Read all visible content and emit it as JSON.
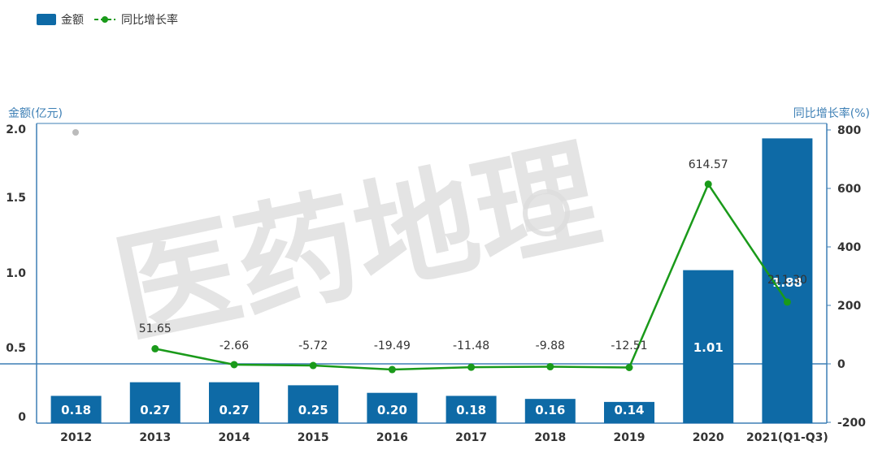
{
  "colors": {
    "bar": "#0e6aa6",
    "line": "#1a9a1a",
    "axis": "#3d7fb5",
    "label_text": "#333333",
    "bar_label_text": "#ffffff",
    "watermark": "#dcdcdc"
  },
  "legend": {
    "bar_label": "金额",
    "line_label": "同比增长率"
  },
  "watermark": {
    "text": "医药地理"
  },
  "chart_data": {
    "type": "bar",
    "categories": [
      "2012",
      "2013",
      "2014",
      "2015",
      "2016",
      "2017",
      "2018",
      "2019",
      "2020",
      "2021(Q1-Q3)"
    ],
    "series": [
      {
        "name": "金额",
        "type": "bar",
        "axis": "left",
        "values": [
          0.18,
          0.27,
          0.27,
          0.25,
          0.2,
          0.18,
          0.16,
          0.14,
          1.01,
          1.88
        ],
        "labels": [
          "0.18",
          "0.27",
          "0.27",
          "0.25",
          "0.20",
          "0.18",
          "0.16",
          "0.14",
          "1.01",
          "1.88"
        ]
      },
      {
        "name": "同比增长率",
        "type": "line",
        "axis": "right",
        "values": [
          null,
          51.65,
          -2.66,
          -5.72,
          -19.49,
          -11.48,
          -9.88,
          -12.51,
          614.57,
          211.3
        ],
        "labels": [
          "",
          "51.65",
          "-2.66",
          "-5.72",
          "-19.49",
          "-11.48",
          "-9.88",
          "-12.51",
          "614.57",
          "211.30"
        ]
      }
    ],
    "y_left": {
      "label": "金额(亿元)",
      "ticks": [
        0,
        0.5,
        1.0,
        1.5,
        2.0
      ],
      "tick_labels": [
        "0",
        "0.5",
        "1.0",
        "1.5",
        "2.0"
      ],
      "range": [
        0,
        2.0
      ]
    },
    "y_right": {
      "label": "同比增长率(%)",
      "ticks": [
        -200,
        0,
        200,
        400,
        600,
        800
      ],
      "tick_labels": [
        "-200",
        "0",
        "200",
        "400",
        "600",
        "800"
      ],
      "range": [
        -200,
        800
      ]
    },
    "grid": false,
    "legend_position": "top-left"
  }
}
